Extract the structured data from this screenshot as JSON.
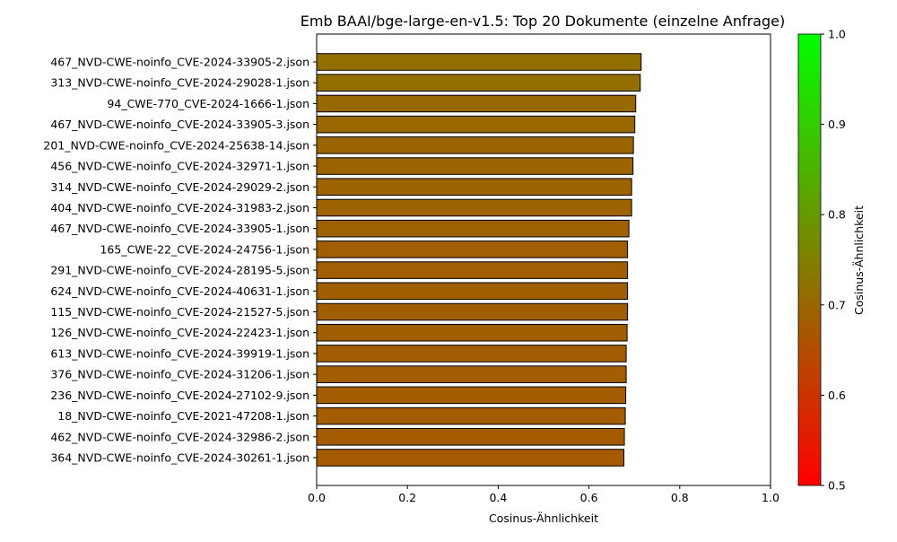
{
  "chart_data": {
    "type": "bar",
    "orientation": "horizontal",
    "title": "Emb BAAI/bge-large-en-v1.5: Top 20 Dokumente (einzelne Anfrage)",
    "xlabel": "Cosinus-Ähnlichkeit",
    "ylabel": "",
    "xlim": [
      0,
      1
    ],
    "xticks": [
      "0.0",
      "0.2",
      "0.4",
      "0.6",
      "0.8",
      "1.0"
    ],
    "grid": false,
    "categories": [
      "467_NVD-CWE-noinfo_CVE-2024-33905-2.json",
      "313_NVD-CWE-noinfo_CVE-2024-29028-1.json",
      "94_CWE-770_CVE-2024-1666-1.json",
      "467_NVD-CWE-noinfo_CVE-2024-33905-3.json",
      "201_NVD-CWE-noinfo_CVE-2024-25638-14.json",
      "456_NVD-CWE-noinfo_CVE-2024-32971-1.json",
      "314_NVD-CWE-noinfo_CVE-2024-29029-2.json",
      "404_NVD-CWE-noinfo_CVE-2024-31983-2.json",
      "467_NVD-CWE-noinfo_CVE-2024-33905-1.json",
      "165_CWE-22_CVE-2024-24756-1.json",
      "291_NVD-CWE-noinfo_CVE-2024-28195-5.json",
      "624_NVD-CWE-noinfo_CVE-2024-40631-1.json",
      "115_NVD-CWE-noinfo_CVE-2024-21527-5.json",
      "126_NVD-CWE-noinfo_CVE-2024-22423-1.json",
      "613_NVD-CWE-noinfo_CVE-2024-39919-1.json",
      "376_NVD-CWE-noinfo_CVE-2024-31206-1.json",
      "236_NVD-CWE-noinfo_CVE-2024-27102-9.json",
      "18_NVD-CWE-noinfo_CVE-2021-47208-1.json",
      "462_NVD-CWE-noinfo_CVE-2024-32986-2.json",
      "364_NVD-CWE-noinfo_CVE-2024-30261-1.json"
    ],
    "values": [
      0.715,
      0.713,
      0.703,
      0.701,
      0.698,
      0.697,
      0.694,
      0.694,
      0.688,
      0.685,
      0.685,
      0.685,
      0.685,
      0.684,
      0.682,
      0.682,
      0.681,
      0.68,
      0.678,
      0.677
    ],
    "colorbar": {
      "label": "Cosinus-Ähnlichkeit",
      "range": [
        0.5,
        1.0
      ],
      "ticks": [
        "0.5",
        "0.6",
        "0.7",
        "0.8",
        "0.9",
        "1.0"
      ],
      "color_low": "#ff0000",
      "color_high": "#00ff00"
    },
    "bar_edge_color": "#000000"
  }
}
